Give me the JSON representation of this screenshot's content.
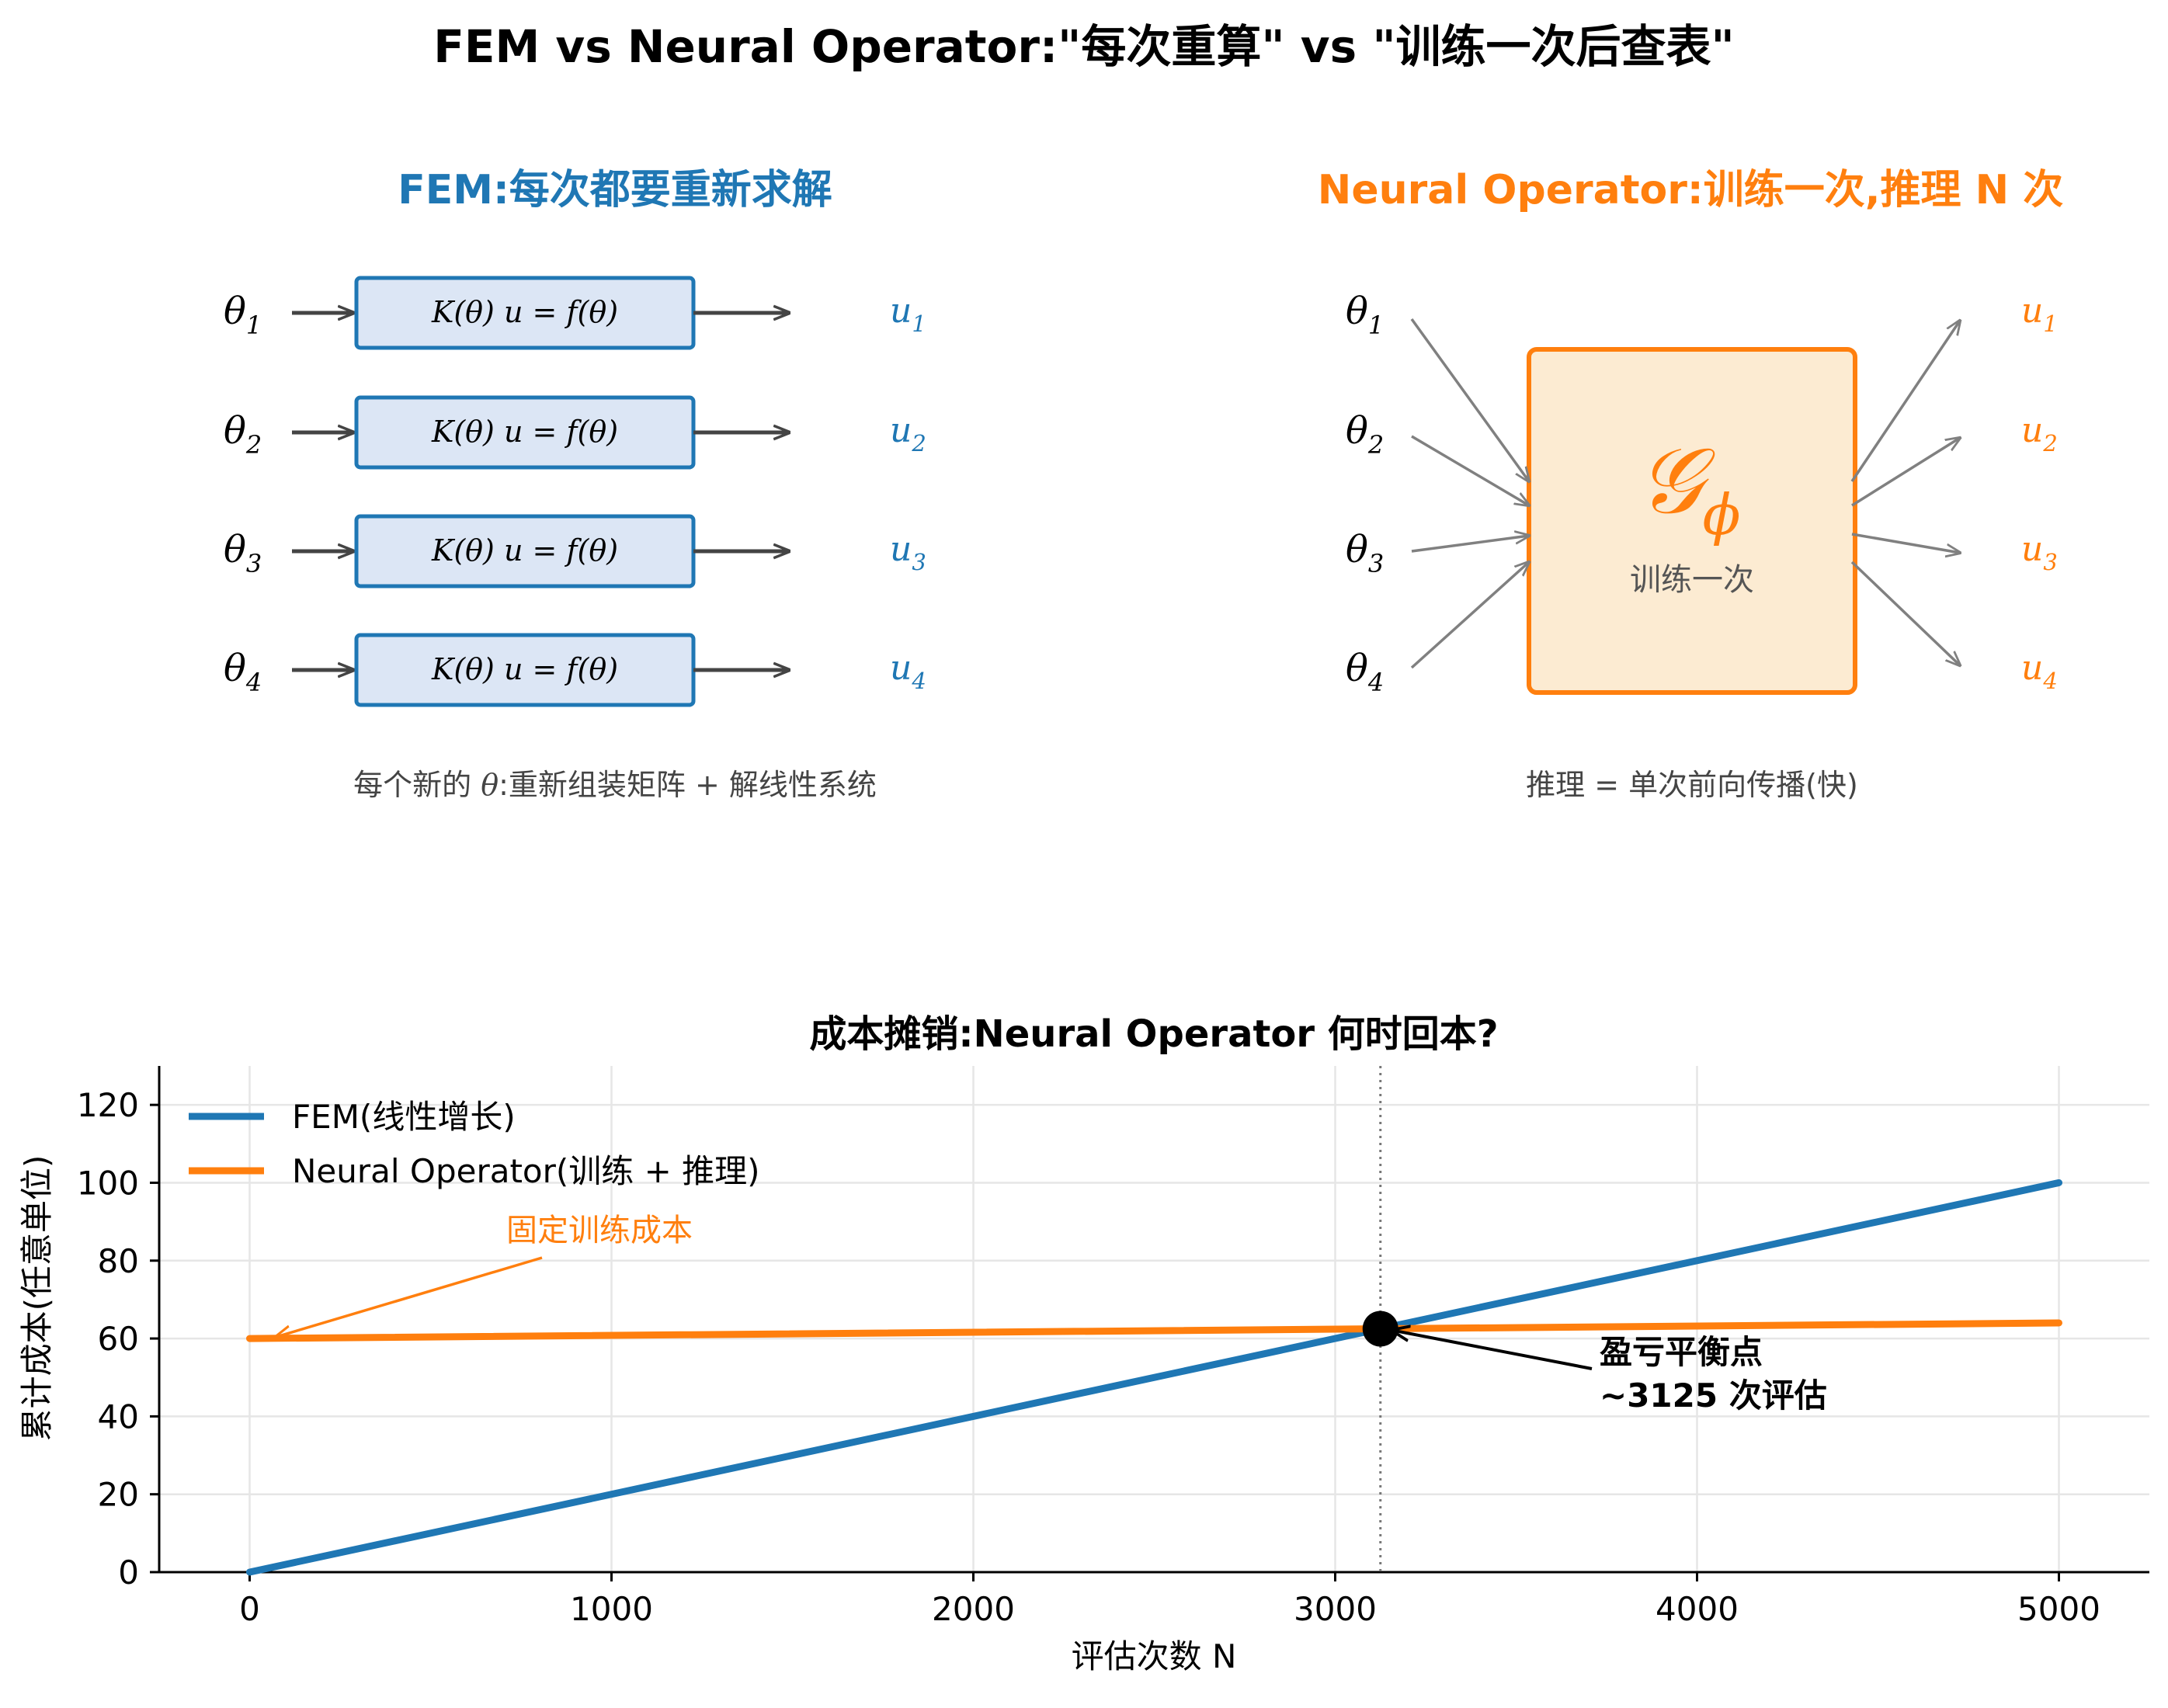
{
  "figure": {
    "title": "FEM vs Neural Operator:\"每次重算\"  vs  \"训练一次后查表\""
  },
  "colors": {
    "fem_blue": "#1f77b4",
    "no_orange": "#ff7f0e",
    "box_blue_fill": "#dce6f5",
    "box_orange_fill": "#fcebd2",
    "arrow_dark": "#444444",
    "arrow_gray": "#808080",
    "grid": "#e6e6e6"
  },
  "fem_panel": {
    "title": "FEM:每次都要重新求解",
    "rows": [
      {
        "input": "θ",
        "input_sub": "1",
        "equation": "K(θ) u = f(θ)",
        "output": "u",
        "output_sub": "1"
      },
      {
        "input": "θ",
        "input_sub": "2",
        "equation": "K(θ) u = f(θ)",
        "output": "u",
        "output_sub": "2"
      },
      {
        "input": "θ",
        "input_sub": "3",
        "equation": "K(θ) u = f(θ)",
        "output": "u",
        "output_sub": "3"
      },
      {
        "input": "θ",
        "input_sub": "4",
        "equation": "K(θ) u = f(θ)",
        "output": "u",
        "output_sub": "4"
      }
    ],
    "caption_pre": "每个新的 ",
    "caption_theta": "θ",
    "caption_post": ":重新组装矩阵 + 解线性系统"
  },
  "no_panel": {
    "title": "Neural Operator:训练一次,推理 N 次",
    "operator_symbol": "𝒢",
    "operator_sub": "ϕ",
    "box_label": "训练一次",
    "inputs": [
      {
        "sym": "θ",
        "sub": "1"
      },
      {
        "sym": "θ",
        "sub": "2"
      },
      {
        "sym": "θ",
        "sub": "3"
      },
      {
        "sym": "θ",
        "sub": "4"
      }
    ],
    "outputs": [
      {
        "sym": "u",
        "sub": "1"
      },
      {
        "sym": "u",
        "sub": "2"
      },
      {
        "sym": "u",
        "sub": "3"
      },
      {
        "sym": "u",
        "sub": "4"
      }
    ],
    "caption": "推理 = 单次前向传播(快)"
  },
  "chart_data": {
    "type": "line",
    "title": "成本摊销:Neural Operator 何时回本?",
    "xlabel": "评估次数  N",
    "ylabel": "累计成本(任意单位)",
    "xlim": [
      -250,
      5250
    ],
    "ylim": [
      0,
      130
    ],
    "xticks": [
      0,
      1000,
      2000,
      3000,
      4000,
      5000
    ],
    "yticks": [
      0,
      20,
      40,
      60,
      80,
      100,
      120
    ],
    "grid": true,
    "legend_position": "top-left",
    "series": [
      {
        "name": "FEM(线性增长)",
        "color": "#1f77b4",
        "x": [
          0,
          5000
        ],
        "y": [
          0,
          100
        ]
      },
      {
        "name": "Neural Operator(训练 + 推理)",
        "color": "#ff7f0e",
        "x": [
          0,
          5000
        ],
        "y": [
          60,
          64
        ]
      }
    ],
    "breakeven": {
      "x": 3125,
      "y": 62.5
    },
    "annotations": [
      {
        "text": "固定训练成本",
        "target_x": 60,
        "target_y": 60,
        "color": "#ff7f0e"
      },
      {
        "line1": "盈亏平衡点",
        "line2": "~3125 次评估",
        "target_x": 3125,
        "target_y": 62.5,
        "color": "#000000"
      }
    ]
  }
}
